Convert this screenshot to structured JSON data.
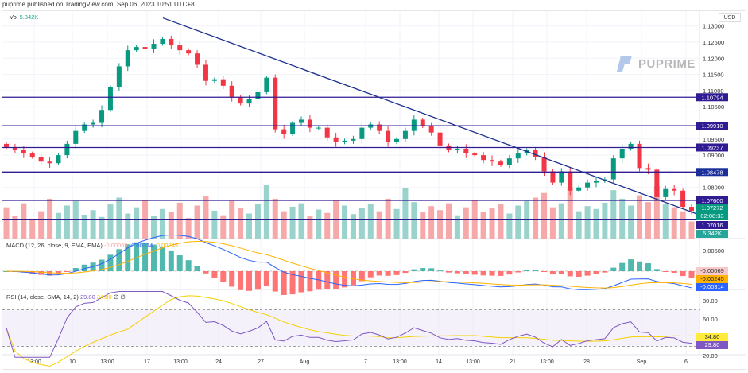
{
  "header": {
    "published": "puprime published on TradingView.com, Sep 06, 2023 10:51 UTC+8"
  },
  "watermark": "PUPRIME",
  "axis_currency": "USD",
  "legend": {
    "vol_label": "Vol",
    "vol_value": "5.342K",
    "macd_label": "MACD (12, 26, close, 9, EMA, EMA)",
    "macd_hist": "-0.00069",
    "macd_line": "-0.00314",
    "macd_signal": "-0.00245",
    "rsi_label": "RSI (14, close, SMA, 14, 2)",
    "rsi_value": "29.80",
    "rsi_ma": "34.80",
    "rsi_extra1": "∅",
    "rsi_extra2": "∅"
  },
  "price_tags": {
    "last": "1.07272",
    "countdown": "02:08:33",
    "volume": "5.342K",
    "macd_hist": "-0.00069",
    "macd_signal": "-0.00245",
    "macd_line": "-0.00314",
    "rsi": "29.80",
    "rsi_ma": "34.80"
  },
  "colors": {
    "up": "#089981",
    "down": "#f23645",
    "level": "#311b92",
    "trend": "#1c2f8f",
    "macd": "#2962ff",
    "signal": "#ffb300",
    "rsi": "#7e57c2"
  },
  "chart_data": {
    "type": "candlestick",
    "price_ticks": [
      "1.13000",
      "1.12500",
      "1.12000",
      "1.11500",
      "1.11000",
      "1.10500",
      "1.09500",
      "1.09000",
      "1.08000"
    ],
    "price_range": [
      1.068,
      1.1325
    ],
    "levels": [
      "1.10794",
      "1.09910",
      "1.09237",
      "1.08478",
      "1.07600",
      "1.07016"
    ],
    "trendline": {
      "from_price": 1.1325,
      "to_price": 1.0715
    },
    "x_labels": [
      "13:00",
      "10",
      "13:00",
      "17",
      "13:00",
      "24",
      "27",
      "Aug",
      "7",
      "13:00",
      "14",
      "13:00",
      "21",
      "13:00",
      "28",
      "Sep",
      "6"
    ],
    "closes": [
      1.0925,
      1.0915,
      1.0905,
      1.0895,
      1.088,
      1.0875,
      1.09,
      1.0935,
      1.0975,
      1.0995,
      1.1,
      1.104,
      1.111,
      1.1175,
      1.1225,
      1.1235,
      1.123,
      1.1245,
      1.126,
      1.124,
      1.1225,
      1.1215,
      1.118,
      1.113,
      1.1135,
      1.1115,
      1.108,
      1.106,
      1.1075,
      1.1095,
      1.114,
      1.098,
      1.0965,
      1.1,
      1.101,
      1.0985,
      1.0985,
      1.0955,
      1.094,
      1.0945,
      1.095,
      1.0985,
      1.0995,
      1.0975,
      1.094,
      1.095,
      1.0975,
      1.101,
      1.099,
      1.097,
      1.093,
      1.0915,
      1.092,
      1.0905,
      1.09,
      1.0885,
      1.088,
      1.087,
      1.089,
      1.0905,
      1.0915,
      1.0895,
      1.085,
      1.0815,
      1.085,
      1.079,
      1.08,
      1.0815,
      1.082,
      1.0825,
      1.089,
      1.092,
      1.0935,
      1.086,
      1.0855,
      1.077,
      1.0795,
      1.079,
      1.074,
      1.07272
    ],
    "volumes": [
      55,
      40,
      62,
      35,
      48,
      70,
      45,
      58,
      66,
      42,
      50,
      38,
      60,
      72,
      44,
      55,
      68,
      40,
      52,
      47,
      63,
      36,
      58,
      75,
      49,
      41,
      66,
      53,
      44,
      60,
      95,
      70,
      48,
      56,
      62,
      39,
      51,
      45,
      67,
      58,
      43,
      54,
      61,
      48,
      70,
      52,
      88,
      64,
      46,
      57,
      50,
      62,
      41,
      55,
      68,
      47,
      53,
      60,
      44,
      58,
      66,
      72,
      80,
      55,
      62,
      90,
      48,
      57,
      52,
      63,
      85,
      70,
      58,
      76,
      64,
      92,
      60,
      55,
      48,
      30
    ],
    "macd": {
      "fast": 12,
      "slow": 26,
      "signal": 9,
      "range": [
        -0.006,
        0.0075
      ],
      "ticks": [
        "0.00500",
        "0.00000"
      ]
    },
    "rsi": {
      "period": 14,
      "ma": 14,
      "ticks": [
        "80.00",
        "60.00",
        "20.00"
      ],
      "bands": [
        70,
        50,
        30
      ]
    }
  }
}
